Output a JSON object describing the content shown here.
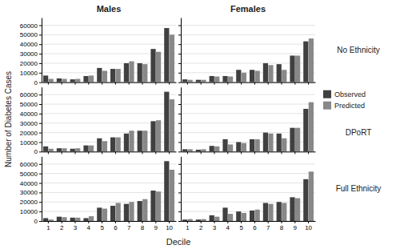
{
  "chart_data": [
    {
      "type": "bar",
      "title": "Males",
      "ylabel": "Number of Diabetes Cases",
      "categories": [
        "1",
        "2",
        "3",
        "4",
        "5",
        "6",
        "7",
        "8",
        "9",
        "10"
      ],
      "series": [
        {
          "name": "Observed",
          "color": "#404040",
          "values": [
            7000,
            4000,
            3000,
            6500,
            15000,
            14000,
            20000,
            20000,
            35000,
            57000
          ]
        },
        {
          "name": "Predicted",
          "color": "#888888",
          "values": [
            3500,
            3500,
            3500,
            7000,
            12000,
            14000,
            22000,
            19000,
            32000,
            50000
          ]
        }
      ],
      "ylim": [
        0,
        68000
      ],
      "yticks": [
        0,
        10000,
        20000,
        30000,
        40000,
        50000,
        60000
      ],
      "grid": true,
      "tick_labels": "y"
    },
    {
      "type": "bar",
      "title": "Females",
      "annotations": [
        "No Ethnicity"
      ],
      "categories": [
        "1",
        "2",
        "3",
        "4",
        "5",
        "6",
        "7",
        "8",
        "9",
        "10"
      ],
      "series": [
        {
          "name": "Observed",
          "color": "#404040",
          "values": [
            3000,
            2500,
            6500,
            6500,
            13000,
            13000,
            20000,
            19000,
            28000,
            43000
          ]
        },
        {
          "name": "Predicted",
          "color": "#888888",
          "values": [
            2500,
            2500,
            6000,
            6000,
            10000,
            12000,
            18000,
            13000,
            28000,
            46000
          ]
        }
      ],
      "ylim": [
        0,
        68000
      ],
      "yticks": [
        0,
        10000,
        20000,
        30000,
        40000,
        50000,
        60000
      ],
      "grid": true,
      "tick_labels": false
    },
    {
      "type": "bar",
      "categories": [
        "1",
        "2",
        "3",
        "4",
        "5",
        "6",
        "7",
        "8",
        "9",
        "10"
      ],
      "series": [
        {
          "name": "Observed",
          "color": "#404040",
          "values": [
            5500,
            3500,
            3000,
            6500,
            14000,
            15000,
            19000,
            22000,
            32000,
            63000
          ]
        },
        {
          "name": "Predicted",
          "color": "#888888",
          "values": [
            3000,
            3500,
            3500,
            6500,
            11000,
            15000,
            22000,
            22000,
            33000,
            55000
          ]
        }
      ],
      "ylim": [
        0,
        68000
      ],
      "yticks": [
        0,
        10000,
        20000,
        30000,
        40000,
        50000,
        60000
      ],
      "grid": true,
      "tick_labels": "y"
    },
    {
      "type": "bar",
      "annotations": [
        "DPoRT"
      ],
      "legend": "right",
      "categories": [
        "1",
        "2",
        "3",
        "4",
        "5",
        "6",
        "7",
        "8",
        "9",
        "10"
      ],
      "series": [
        {
          "name": "Observed",
          "color": "#404040",
          "values": [
            2500,
            2000,
            6000,
            13000,
            10000,
            13000,
            20000,
            19000,
            25000,
            45000
          ]
        },
        {
          "name": "Predicted",
          "color": "#888888",
          "values": [
            2500,
            2500,
            5500,
            7500,
            9000,
            13000,
            19000,
            14000,
            25000,
            52000
          ]
        }
      ],
      "ylim": [
        0,
        68000
      ],
      "yticks": [
        0,
        10000,
        20000,
        30000,
        40000,
        50000,
        60000
      ],
      "grid": true,
      "tick_labels": false
    },
    {
      "type": "bar",
      "xlabel": "Decile",
      "categories": [
        "1",
        "2",
        "3",
        "4",
        "5",
        "6",
        "7",
        "8",
        "9",
        "10"
      ],
      "series": [
        {
          "name": "Observed",
          "color": "#404040",
          "values": [
            3000,
            4500,
            3500,
            3000,
            14000,
            16000,
            18000,
            21000,
            32000,
            63000
          ]
        },
        {
          "name": "Predicted",
          "color": "#888888",
          "values": [
            1500,
            4000,
            3500,
            5000,
            13000,
            19000,
            20000,
            23000,
            31000,
            54000
          ]
        }
      ],
      "ylim": [
        0,
        68000
      ],
      "yticks": [
        0,
        10000,
        20000,
        30000,
        40000,
        50000,
        60000
      ],
      "grid": true
    },
    {
      "type": "bar",
      "annotations": [
        "Full Ethnicity"
      ],
      "categories": [
        "1",
        "2",
        "3",
        "4",
        "5",
        "6",
        "7",
        "8",
        "9",
        "10"
      ],
      "series": [
        {
          "name": "Observed",
          "color": "#404040",
          "values": [
            1500,
            1500,
            6000,
            14000,
            10000,
            11000,
            19000,
            20000,
            25000,
            44000
          ]
        },
        {
          "name": "Predicted",
          "color": "#888888",
          "values": [
            2000,
            2000,
            4500,
            7500,
            8500,
            12000,
            18000,
            19000,
            24000,
            52000
          ]
        }
      ],
      "ylim": [
        0,
        68000
      ],
      "yticks": [
        0,
        10000,
        20000,
        30000,
        40000,
        50000,
        60000
      ],
      "grid": true,
      "tick_labels": "x"
    }
  ]
}
